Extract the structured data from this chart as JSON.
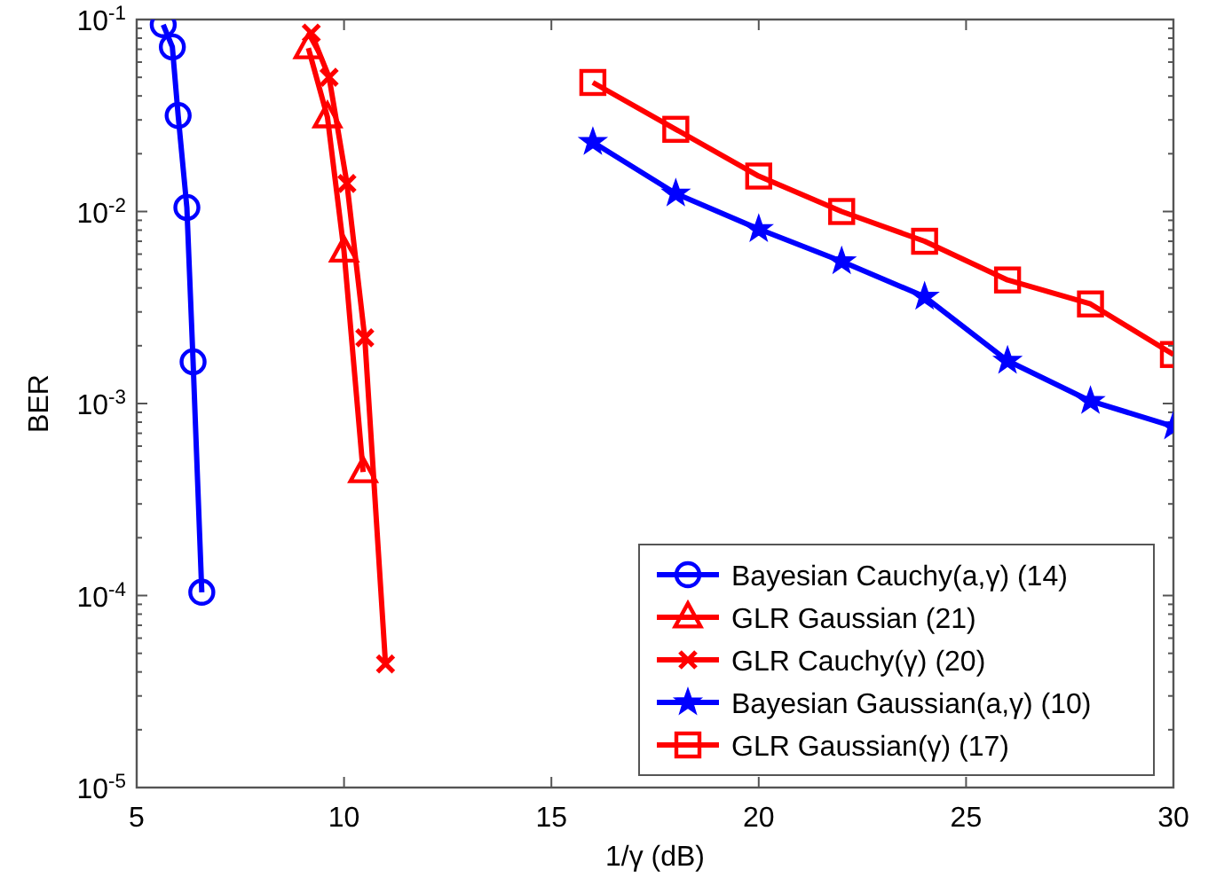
{
  "chart_data": {
    "type": "line",
    "xlabel": "1/γ (dB)",
    "ylabel": "BER",
    "log": "y",
    "xlim": [
      5,
      30
    ],
    "xticks": [
      5,
      10,
      15,
      20,
      25,
      30
    ],
    "ylim": [
      1e-05,
      0.1
    ],
    "yticks": [
      {
        "value": 1e-05,
        "label": "10$^{-5}$"
      },
      {
        "value": 0.0001,
        "label": "10$^{-4}$"
      },
      {
        "value": 0.001,
        "label": "10$^{-3}$"
      },
      {
        "value": 0.01,
        "label": "10$^{-2}$"
      },
      {
        "value": 0.1,
        "label": "10$^{-1}$"
      }
    ],
    "grid": false,
    "legend": "bottom right",
    "line_style": "solid",
    "series": [
      {
        "name": "Bayesian Cauchy(a,γ) (14)",
        "color": "#0000ff",
        "marker": "circle",
        "x": [
          5.64,
          5.86,
          6.0,
          6.21,
          6.36,
          6.57
        ],
        "values": [
          0.094,
          0.072,
          0.0316,
          0.0105,
          0.00165,
          0.000104
        ]
      },
      {
        "name": "GLR Gaussian (21)",
        "color": "#ff0000",
        "marker": "triangle",
        "x": [
          9.14,
          9.6,
          10.0,
          10.46
        ],
        "values": [
          0.071,
          0.031,
          0.0062,
          0.00044
        ]
      },
      {
        "name": "GLR Cauchy(γ) (20)",
        "color": "#ff0000",
        "marker": "cross",
        "x": [
          9.21,
          9.64,
          10.07,
          10.5,
          11.0
        ],
        "values": [
          0.085,
          0.05,
          0.014,
          0.0022,
          4.4e-05
        ]
      },
      {
        "name": "Bayesian Gaussian(a,γ) (10)",
        "color": "#0000ff",
        "marker": "star",
        "x": [
          16,
          18,
          20,
          22,
          24,
          26,
          28,
          30
        ],
        "values": [
          0.023,
          0.0124,
          0.0081,
          0.0055,
          0.0036,
          0.00167,
          0.00103,
          0.00076
        ]
      },
      {
        "name": "GLR Gaussian(γ) (17)",
        "color": "#ff0000",
        "marker": "square",
        "x": [
          16,
          18,
          20,
          22,
          24,
          26,
          28,
          30
        ],
        "values": [
          0.047,
          0.0268,
          0.0153,
          0.01,
          0.007,
          0.0044,
          0.0033,
          0.0018
        ]
      }
    ]
  }
}
